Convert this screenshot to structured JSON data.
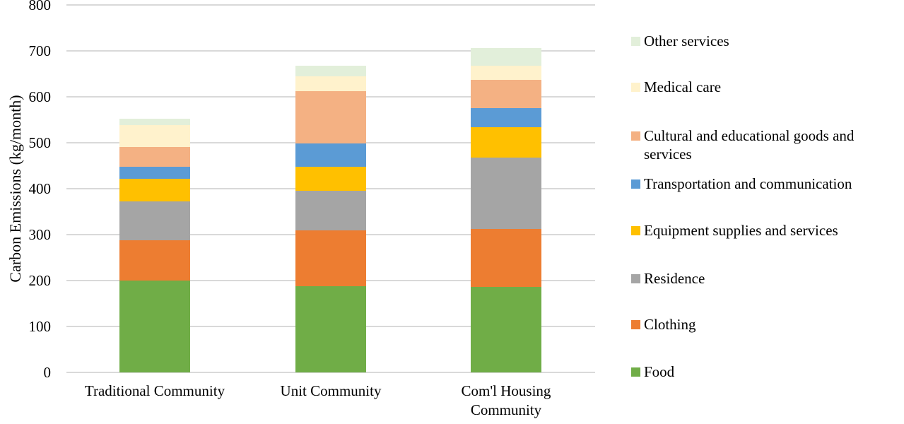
{
  "chart_data": {
    "type": "bar",
    "stacked": true,
    "title": "",
    "xlabel": "",
    "ylabel": "Carbon Emissions (kg/month)",
    "ylim": [
      0,
      800
    ],
    "yticks": [
      0,
      100,
      200,
      300,
      400,
      500,
      600,
      700,
      800
    ],
    "grid": true,
    "legend_position": "right",
    "categories": [
      "Traditional Community",
      "Unit Community",
      "Com'l Housing Community"
    ],
    "series": [
      {
        "name": "Food",
        "color": "#70AD47",
        "values": [
          200,
          188,
          186
        ]
      },
      {
        "name": "Clothing",
        "color": "#ED7D31",
        "values": [
          87,
          121,
          127
        ]
      },
      {
        "name": "Residence",
        "color": "#A5A5A5",
        "values": [
          85,
          86,
          155
        ]
      },
      {
        "name": "Equipment supplies and services",
        "color": "#FFC000",
        "values": [
          50,
          53,
          66
        ]
      },
      {
        "name": "Transportation and communication",
        "color": "#5B9BD5",
        "values": [
          25,
          50,
          41
        ]
      },
      {
        "name": "Cultural and educational goods and services",
        "color": "#F4B183",
        "values": [
          43,
          115,
          62
        ]
      },
      {
        "name": "Medical care",
        "color": "#FFF2CC",
        "values": [
          49,
          32,
          31
        ]
      },
      {
        "name": "Other services",
        "color": "#E2EFDA",
        "values": [
          14,
          22,
          38
        ]
      }
    ],
    "totals": [
      553,
      667,
      706
    ]
  },
  "colors": {
    "background": "#FFFFFF",
    "gridline": "#D9D9D9",
    "text": "#000000"
  }
}
